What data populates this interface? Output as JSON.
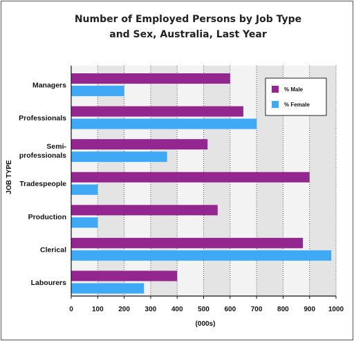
{
  "chart_data": {
    "type": "bar",
    "orientation": "horizontal",
    "title_lines": [
      "Number of Employed Persons by Job Type",
      "and Sex, Australia, Last Year"
    ],
    "xlabel": "(000s)",
    "ylabel": "JOB TYPE",
    "xlim": [
      0,
      1000
    ],
    "xticks": [
      0,
      100,
      200,
      300,
      400,
      500,
      600,
      700,
      800,
      900,
      1000
    ],
    "grid": "vertical dotted, alternating shaded bands",
    "legend_position": "top-right",
    "categories": [
      [
        "Managers"
      ],
      [
        "Professionals"
      ],
      [
        "Semi-",
        "professionals"
      ],
      [
        "Tradespeople"
      ],
      [
        "Production"
      ],
      [
        "Clerical"
      ],
      [
        "Labourers"
      ]
    ],
    "series": [
      {
        "name": "% Male",
        "color": "#93278f",
        "values": [
          600,
          650,
          515,
          900,
          553,
          875,
          400
        ]
      },
      {
        "name": "% Female",
        "color": "#3fa9f5",
        "values": [
          200,
          700,
          362,
          100,
          100,
          982,
          275
        ]
      }
    ]
  }
}
